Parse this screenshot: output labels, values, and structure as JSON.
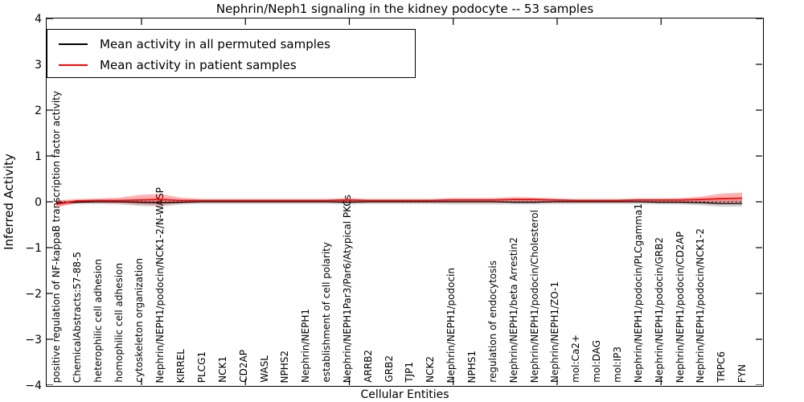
{
  "figure": {
    "title": "Nephrin/Neph1 signaling in the kidney podocyte -- 53 samples",
    "xlabel": "Cellular Entities",
    "ylabel": "Inferred Activity",
    "legend": {
      "entries": [
        {
          "label": "Mean activity in all permuted samples",
          "color": "#000000"
        },
        {
          "label": "Mean activity in patient samples",
          "color": "#ff0000"
        }
      ]
    }
  },
  "chart_data": {
    "type": "line",
    "title": "Nephrin/Neph1 signaling in the kidney podocyte -- 53 samples",
    "xlabel": "Cellular Entities",
    "ylabel": "Inferred Activity",
    "ylim": [
      -4,
      4
    ],
    "yticks": [
      -4,
      -3,
      -2,
      -1,
      0,
      1,
      2,
      3,
      4
    ],
    "x_major_tick_index_positions": [
      4.1,
      9.1,
      14.1,
      19.1,
      24.1,
      29.1
    ],
    "grid": false,
    "legend_position": "upper left",
    "zero_line": true,
    "categories": [
      "positive regulation of NF-kappaB transcription factor activity",
      "ChemicalAbstracts:57-88-5",
      "heterophilic cell adhesion",
      "homophilic cell adhesion",
      "cytoskeleton organization",
      "Nephrin/NEPH1/podocin/NCK1-2/N-WASP",
      "KIRREL",
      "PLCG1",
      "NCK1",
      "CD2AP",
      "WASL",
      "NPHS2",
      "Nephrin/NEPH1",
      "establishment of cell polarity",
      "Nephrin/NEPH1Par3/Par6/Atypical PKCs",
      "ARRB2",
      "GRB2",
      "TJP1",
      "NCK2",
      "Nephrin/NEPH1/podocin",
      "NPHS1",
      "regulation of endocytosis",
      "Nephrin/NEPH1/beta Arrestin2",
      "Nephrin/NEPH1/podocin/Cholesterol",
      "Nephrin/NEPH1/ZO-1",
      "mol:Ca2+",
      "mol:DAG",
      "mol:IP3",
      "Nephrin/NEPH1/podocin/PLCgamma1",
      "Nephrin/NEPH1/podocin/GRB2",
      "Nephrin/NEPH1/podocin/CD2AP",
      "Nephrin/NEPH1/podocin/NCK1-2",
      "TRPC6",
      "FYN"
    ],
    "series": [
      {
        "name": "Mean activity in all permuted samples",
        "color": "#000000",
        "band_color": "rgba(0,0,0,0.16)",
        "values": [
          -0.02,
          -0.01,
          0,
          0,
          -0.01,
          -0.02,
          -0.01,
          0,
          0,
          0,
          0,
          0,
          0,
          0,
          -0.01,
          0,
          0,
          0,
          0,
          0,
          0,
          0,
          -0.01,
          -0.01,
          0,
          0,
          0,
          0,
          0,
          -0.01,
          -0.01,
          -0.02,
          -0.04,
          -0.04
        ],
        "band_upper": [
          0.03,
          0.03,
          0.03,
          0.04,
          0.06,
          0.07,
          0.04,
          0.03,
          0.03,
          0.03,
          0.03,
          0.03,
          0.03,
          0.03,
          0.04,
          0.03,
          0.03,
          0.03,
          0.03,
          0.04,
          0.04,
          0.04,
          0.04,
          0.04,
          0.04,
          0.03,
          0.03,
          0.03,
          0.04,
          0.04,
          0.04,
          0.05,
          0.06,
          0.06
        ],
        "band_lower": [
          -0.08,
          -0.05,
          -0.05,
          -0.06,
          -0.09,
          -0.11,
          -0.06,
          -0.05,
          -0.05,
          -0.05,
          -0.05,
          -0.05,
          -0.05,
          -0.05,
          -0.06,
          -0.05,
          -0.05,
          -0.05,
          -0.05,
          -0.06,
          -0.06,
          -0.06,
          -0.06,
          -0.06,
          -0.05,
          -0.05,
          -0.05,
          -0.05,
          -0.05,
          -0.06,
          -0.06,
          -0.08,
          -0.11,
          -0.11
        ]
      },
      {
        "name": "Mean activity in patient samples",
        "color": "#ff0000",
        "band_color": "rgba(255,0,0,0.30)",
        "values": [
          -0.05,
          0.02,
          0.03,
          0.03,
          0.04,
          0.05,
          0.03,
          0.03,
          0.03,
          0.03,
          0.03,
          0.03,
          0.03,
          0.03,
          0.04,
          0.03,
          0.03,
          0.03,
          0.03,
          0.04,
          0.04,
          0.04,
          0.05,
          0.05,
          0.04,
          0.03,
          0.03,
          0.03,
          0.04,
          0.04,
          0.04,
          0.05,
          0.07,
          0.08
        ],
        "band_upper": [
          0.03,
          0.06,
          0.07,
          0.09,
          0.15,
          0.17,
          0.09,
          0.06,
          0.06,
          0.06,
          0.06,
          0.06,
          0.06,
          0.06,
          0.08,
          0.06,
          0.06,
          0.06,
          0.06,
          0.08,
          0.08,
          0.08,
          0.1,
          0.09,
          0.07,
          0.06,
          0.06,
          0.06,
          0.07,
          0.07,
          0.08,
          0.11,
          0.18,
          0.2
        ],
        "band_lower": [
          -0.13,
          -0.02,
          -0.02,
          -0.03,
          -0.06,
          -0.07,
          -0.03,
          -0.01,
          -0.01,
          -0.01,
          -0.01,
          -0.01,
          -0.01,
          -0.01,
          -0.02,
          -0.01,
          -0.01,
          -0.01,
          -0.01,
          -0.01,
          -0.01,
          -0.01,
          -0.02,
          -0.02,
          -0.01,
          -0.01,
          -0.01,
          -0.01,
          -0.01,
          -0.01,
          -0.02,
          -0.02,
          -0.03,
          -0.02
        ]
      }
    ]
  }
}
